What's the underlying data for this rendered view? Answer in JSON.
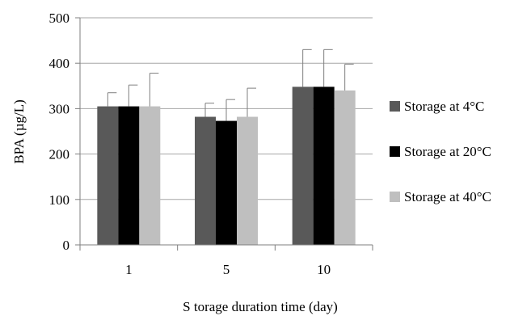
{
  "chart_data": {
    "type": "bar",
    "title": "",
    "xlabel": "S torage duration time (day)",
    "ylabel": "BPA (µg/L)",
    "ylim": [
      0,
      500
    ],
    "yticks": [
      0,
      100,
      200,
      300,
      400,
      500
    ],
    "grid": true,
    "legend": "right",
    "categories": [
      "1",
      "5",
      "10"
    ],
    "series": [
      {
        "name": "Storage at 4°C",
        "color": "#595959",
        "values": [
          305,
          282,
          348
        ],
        "errors": [
          30,
          30,
          82
        ]
      },
      {
        "name": "Storage at 20°C",
        "color": "#000000",
        "values": [
          305,
          273,
          348
        ],
        "errors": [
          47,
          47,
          82
        ]
      },
      {
        "name": "Storage at 40°C",
        "color": "#bfbfbf",
        "values": [
          305,
          282,
          340
        ],
        "errors": [
          73,
          63,
          58
        ]
      }
    ]
  }
}
